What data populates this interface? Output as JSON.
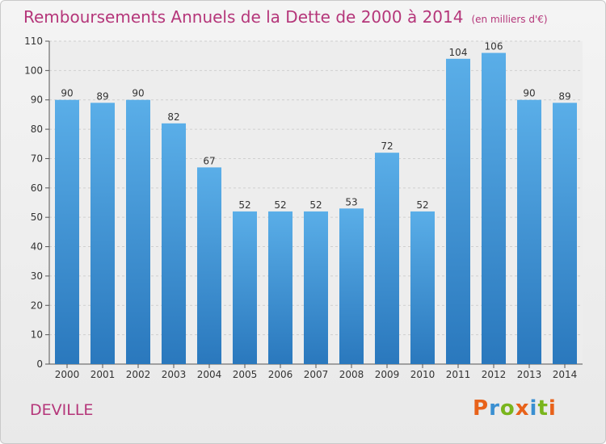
{
  "chart_data": {
    "type": "bar",
    "title": "Remboursements Annuels de la Dette de 2000 à 2014",
    "unit": "(en milliers d'€)",
    "categories": [
      "2000",
      "2001",
      "2002",
      "2003",
      "2004",
      "2005",
      "2006",
      "2007",
      "2008",
      "2009",
      "2010",
      "2011",
      "2012",
      "2013",
      "2014"
    ],
    "values": [
      90,
      89,
      90,
      82,
      67,
      52,
      52,
      52,
      53,
      72,
      52,
      104,
      106,
      90,
      89
    ],
    "yticks": [
      0,
      10,
      20,
      30,
      40,
      50,
      60,
      70,
      80,
      90,
      100,
      110
    ],
    "ylim": [
      0,
      110
    ],
    "xlabel": "",
    "ylabel": "",
    "grid": true,
    "colors": {
      "bar_top": "#5aaee8",
      "bar_bottom": "#2a78bd",
      "title": "#b5367a"
    }
  },
  "place_name": "DEVILLE",
  "logo": {
    "letters": [
      "P",
      "r",
      "o",
      "x",
      "i",
      "t",
      "i"
    ],
    "colors": [
      "#e8621a",
      "#3a8fd1",
      "#7ab51d",
      "#e8621a",
      "#3a8fd1",
      "#7ab51d",
      "#e8621a"
    ]
  }
}
